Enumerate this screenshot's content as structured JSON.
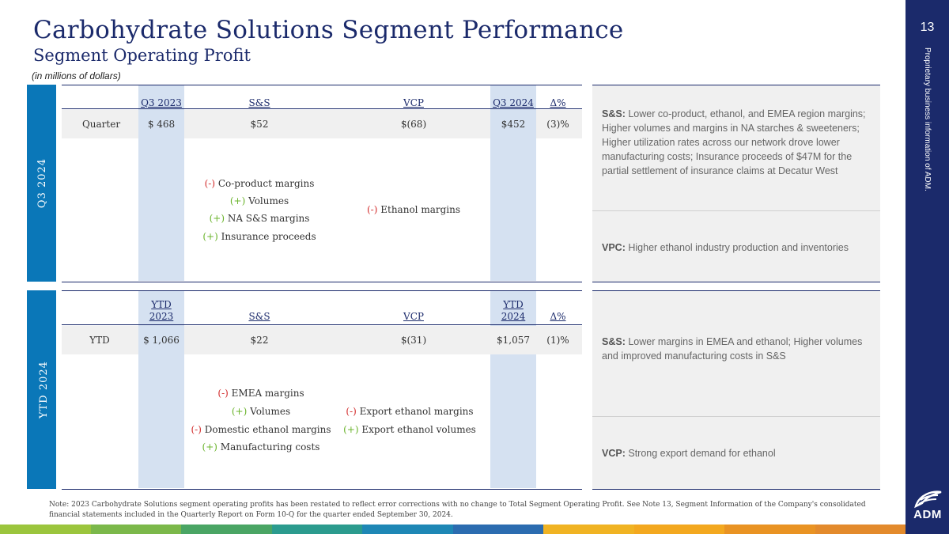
{
  "header": {
    "title": "Carbohydrate Solutions Segment Performance",
    "subtitle": "Segment Operating Profit",
    "units_note": "(in millions of dollars)",
    "page_number": "13",
    "proprietary": "Proprietary business information of ADM.",
    "logo_text": "ADM"
  },
  "q3": {
    "side_label": "Q3 2024",
    "headers": {
      "prior": "Q3 2023",
      "ss": "S&S",
      "vcp": "VCP",
      "current": "Q3 2024",
      "delta": "Δ%"
    },
    "row": {
      "label": "Quarter",
      "prior": "$ 468",
      "ss": "$52",
      "vcp": "$(68)",
      "current": "$452",
      "delta": "(3)%"
    },
    "ss_drivers": [
      {
        "sign": "(-)",
        "text": "Co-product margins"
      },
      {
        "sign": "(+)",
        "text": "Volumes"
      },
      {
        "sign": "(+)",
        "text": "NA S&S margins"
      },
      {
        "sign": "(+)",
        "text": "Insurance proceeds"
      }
    ],
    "vcp_drivers": [
      {
        "sign": "(-)",
        "text": "Ethanol margins"
      }
    ],
    "commentary": {
      "ss_label": "S&S:",
      "ss_text": "Lower co-product, ethanol, and EMEA region margins; Higher volumes and margins in NA starches & sweeteners; Higher utilization rates across our network drove lower manufacturing costs; Insurance proceeds of $47M for the partial settlement of insurance claims at Decatur West",
      "vcp_label": "VPC:",
      "vcp_text": "Higher ethanol industry production and inventories"
    }
  },
  "ytd": {
    "side_label": "YTD 2024",
    "headers": {
      "prior_l1": "YTD",
      "prior_l2": "2023",
      "ss": "S&S",
      "vcp": "VCP",
      "current_l1": "YTD",
      "current_l2": "2024",
      "delta": "Δ%"
    },
    "row": {
      "label": "YTD",
      "prior": "$ 1,066",
      "ss": "$22",
      "vcp": "$(31)",
      "current": "$1,057",
      "delta": "(1)%"
    },
    "ss_drivers": [
      {
        "sign": "(-)",
        "text": "EMEA margins"
      },
      {
        "sign": "(+)",
        "text": "Volumes"
      },
      {
        "sign": "(-)",
        "text": "Domestic ethanol margins"
      },
      {
        "sign": "(+)",
        "text": "Manufacturing costs"
      }
    ],
    "vcp_drivers": [
      {
        "sign": "(-)",
        "text": "Export ethanol margins"
      },
      {
        "sign": "(+)",
        "text": "Export ethanol volumes"
      }
    ],
    "commentary": {
      "ss_label": "S&S:",
      "ss_text": "Lower margins in EMEA and ethanol; Higher volumes and improved manufacturing costs in S&S",
      "vcp_label": "VCP:",
      "vcp_text": "Strong export demand for ethanol"
    }
  },
  "footer": {
    "note": "Note: 2023 Carbohydrate Solutions segment operating profits has been restated to reflect error corrections with no change to Total Segment Operating Profit.  See Note 13, Segment Information of the Company's consolidated financial statements included in the Quarterly Report on Form 10-Q for the quarter ended September 30, 2024."
  },
  "colors": {
    "navy": "#1b2a6b",
    "blue": "#0a77b8",
    "highlight": "#d5e1f1",
    "negative": "#d32f2f",
    "positive": "#6bb42d",
    "stripe": [
      "#9bc53d",
      "#7bb84a",
      "#4aa564",
      "#2b9b8e",
      "#1e87b5",
      "#2b6cb0",
      "#f0b323",
      "#f3a81f",
      "#e99323",
      "#e38a2c"
    ]
  }
}
